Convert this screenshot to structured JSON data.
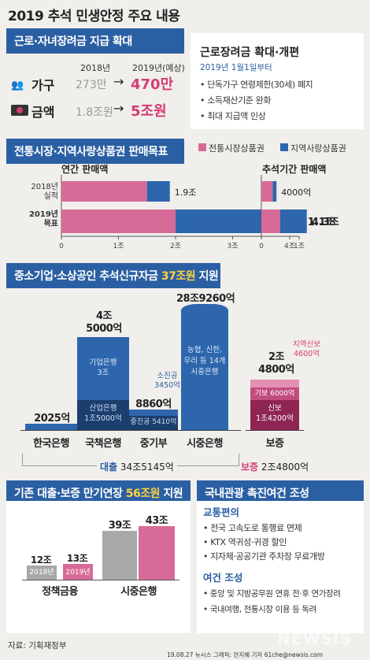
{
  "title": "2019 추석 민생안정 주요 내용",
  "colors": {
    "header": "#2b5fa3",
    "pink": "#d76b97",
    "blue": "#2d66ad",
    "darkblue": "#1a3e6e",
    "accent": "#d43c73",
    "yellow": "#ffd23f"
  },
  "sec1": {
    "header": "근로·자녀장려금 지급 확대",
    "year_before": "2018년",
    "year_after": "2019년(예상)",
    "households_label": "가구",
    "households_before": "273만",
    "households_after": "470만",
    "amount_label": "금액",
    "amount_before": "1.8조원",
    "amount_after": "5조원",
    "arrow": "→",
    "reform_title": "근로장려금 확대·개편",
    "reform_date": "2019년 1월1일부터",
    "reform_items": [
      "단독가구 연령제한(30세) 폐지",
      "소득재산기준 완화",
      "최대 지급액 인상"
    ]
  },
  "sec2": {
    "header": "전통시장·지역사랑상품권 판매목표",
    "legend_a": "전통시장상품권",
    "legend_b": "지역사랑상품권",
    "annual_title": "연간 판매액",
    "chuseok_title": "추석기간 판매액",
    "row1_label_1": "2018년",
    "row1_label_2": "실적",
    "row2_label_1": "2019년",
    "row2_label_2": "목표"
  },
  "chart_data": [
    {
      "type": "bar",
      "title": "연간 판매액",
      "orientation": "horizontal",
      "categories": [
        "2018년 실적",
        "2019년 목표"
      ],
      "series": [
        {
          "name": "전통시장상품권",
          "values": [
            1.5,
            2.0
          ]
        },
        {
          "name": "지역사랑상품권",
          "values": [
            0.4,
            2.3
          ]
        }
      ],
      "total_labels": [
        "1.9조",
        "4.3조"
      ],
      "xlim": [
        0,
        4
      ],
      "xticks": [
        "0",
        "1조",
        "2조",
        "3조",
        "4조"
      ]
    },
    {
      "type": "bar",
      "title": "추석기간 판매액",
      "orientation": "horizontal",
      "categories": [
        "2018년 실적",
        "2019년 목표"
      ],
      "series": [
        {
          "name": "전통시장상품권",
          "values": [
            0.3,
            0.5
          ]
        },
        {
          "name": "지역사랑상품권",
          "values": [
            0.1,
            0.6
          ]
        }
      ],
      "total_labels": [
        "4000억",
        "1.1조"
      ],
      "xlim": [
        0,
        1
      ],
      "xticks": [
        "0",
        "1조"
      ]
    },
    {
      "type": "bar",
      "title": "중소기업·소상공인 추석신규자금 37조원 지원",
      "categories": [
        "한국은행",
        "국책은행",
        "중기부",
        "시중은행",
        "보증"
      ],
      "values_eok": [
        2025,
        45000,
        8860,
        289260,
        24800
      ],
      "total_labels": [
        "2025억",
        "4조 5000억",
        "8860억",
        "28조9260억",
        "2조 4800억"
      ],
      "segments": {
        "국책은행": [
          {
            "label": "산업은행 1조5000억",
            "value": 15000
          },
          {
            "label": "기업은행 3조",
            "value": 30000
          }
        ],
        "중기부": [
          {
            "label": "중진공 5410억",
            "value": 5410
          },
          {
            "label": "소진공 3450억",
            "value": 3450
          }
        ],
        "보증": [
          {
            "label": "신보 1조4200억",
            "value": 14200
          },
          {
            "label": "기보 6000억",
            "value": 6000
          },
          {
            "label": "지역신보 4600억",
            "value": 4600
          }
        ]
      },
      "note_banks": "농협, 신한, 우리 등 14개 시중은행"
    },
    {
      "type": "bar",
      "title": "기존 대출·보증 만기연장 56조원 지원",
      "categories": [
        "정책금융",
        "시중은행"
      ],
      "series": [
        {
          "name": "2018년",
          "values": [
            12,
            39
          ]
        },
        {
          "name": "2019년",
          "values": [
            13,
            43
          ]
        }
      ],
      "total_labels": [
        [
          "12조",
          "13조"
        ],
        [
          "39조",
          "43조"
        ]
      ],
      "ylim": [
        0,
        45
      ]
    }
  ],
  "sec3": {
    "header_pre": "중소기업·소상공인 추석신규자금 ",
    "header_hl": "37조원",
    "header_post": " 지원",
    "labels": [
      "한국은행",
      "국책은행",
      "중기부",
      "시중은행",
      "보증"
    ],
    "val_boe": "2025억",
    "val_policy_1": "4조",
    "val_policy_2": "5000억",
    "ibk_1": "기업은행",
    "ibk_2": "3조",
    "kdb_1": "산업은행",
    "kdb_2": "1조5000억",
    "val_smb": "8860억",
    "sbc_1": "소진공",
    "sbc_2": "3450억",
    "kosmes": "중진공 5410억",
    "val_comm": "28조9260억",
    "comm_note": [
      "농협, 신한,",
      "우리 등 14개",
      "시중은행"
    ],
    "val_guar_1": "2조",
    "val_guar_2": "4800억",
    "reg_1": "지역신보",
    "reg_2": "4600억",
    "kibo": "기보 6000억",
    "kodit_1": "신보",
    "kodit_2": "1조4200억",
    "loan_label": "대출",
    "loan_total": "34조5145억",
    "guar_label": "보증",
    "guar_total": "2조4800억"
  },
  "sec4": {
    "header_pre": "기존 대출·보증 만기연장 ",
    "header_hl": "56조원",
    "header_post": " 지원",
    "v_policy_2018": "12조",
    "v_policy_2019": "13조",
    "v_comm_2018": "39조",
    "v_comm_2019": "43조",
    "y2018": "2018년",
    "y2019": "2019년",
    "cat_policy": "정책금융",
    "cat_comm": "시중은행"
  },
  "sec5": {
    "header": "국내관광 촉진여건 조성",
    "sub1": "교통편의",
    "items1": [
      "전국 고속도로 통행료 면제",
      "KTX 역귀성·귀경 할인",
      "지자체·공공기관 주차장 무료개방"
    ],
    "sub2": "여건 조성",
    "items2": [
      "중앙 및 지방공무원 연휴 전·후 연가장려",
      "국내여행, 전통시장 이용 등 독려"
    ]
  },
  "source": "자료: 기획재정부",
  "credit": "19.08.27 뉴시스 그래픽: 안지혜 기자 61che@newsis.com",
  "watermark": "NEWSIS"
}
